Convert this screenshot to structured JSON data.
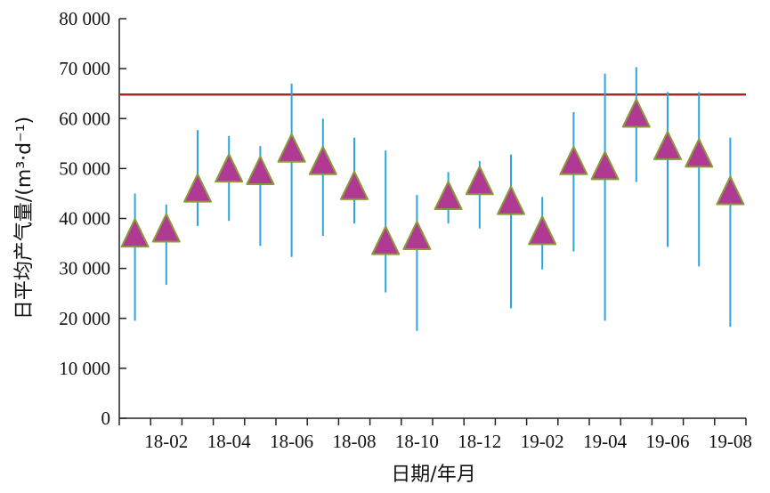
{
  "chart_data": {
    "type": "scatter",
    "title": "",
    "xlabel": "日期/年月",
    "ylabel": "日平均产气量/(m³·d⁻¹)",
    "ylim": [
      0,
      80000
    ],
    "yticks": [
      0,
      10000,
      20000,
      30000,
      40000,
      50000,
      60000,
      70000,
      80000
    ],
    "ytick_labels": [
      "0",
      "10 000",
      "20 000",
      "30 000",
      "40 000",
      "50 000",
      "60 000",
      "70 000",
      "80 000"
    ],
    "xtick_labels": [
      "18-02",
      "18-04",
      "18-06",
      "18-08",
      "18-10",
      "18-12",
      "19-02",
      "19-04",
      "19-06",
      "19-08"
    ],
    "categories": [
      "18-01",
      "18-02",
      "18-03",
      "18-04",
      "18-05",
      "18-06",
      "18-07",
      "18-08",
      "18-09",
      "18-10",
      "18-11",
      "18-12",
      "19-01",
      "19-02",
      "19-03",
      "19-04",
      "19-05",
      "19-06",
      "19-07",
      "19-08"
    ],
    "mean": [
      36500,
      37500,
      45500,
      49500,
      49000,
      53500,
      51000,
      46000,
      35000,
      36000,
      44000,
      47000,
      43000,
      37000,
      51000,
      50000,
      60500,
      54000,
      52500,
      45000
    ],
    "max": [
      45000,
      42800,
      57700,
      56500,
      54500,
      67000,
      60000,
      56200,
      53600,
      44700,
      49300,
      51500,
      52800,
      44300,
      61300,
      69000,
      70300,
      65300,
      65300,
      56200
    ],
    "min": [
      19500,
      26700,
      38500,
      39500,
      34500,
      32300,
      36500,
      39000,
      25200,
      17500,
      39000,
      38000,
      22000,
      29800,
      33400,
      19500,
      47300,
      34300,
      30400,
      18300
    ],
    "reference_line": 64800,
    "colors": {
      "marker_fill": "#b03a93",
      "marker_stroke": "#8a9a3a",
      "errorbar": "#2aa7e0",
      "reference_line": "#a52a2a",
      "axis": "#222222"
    }
  }
}
